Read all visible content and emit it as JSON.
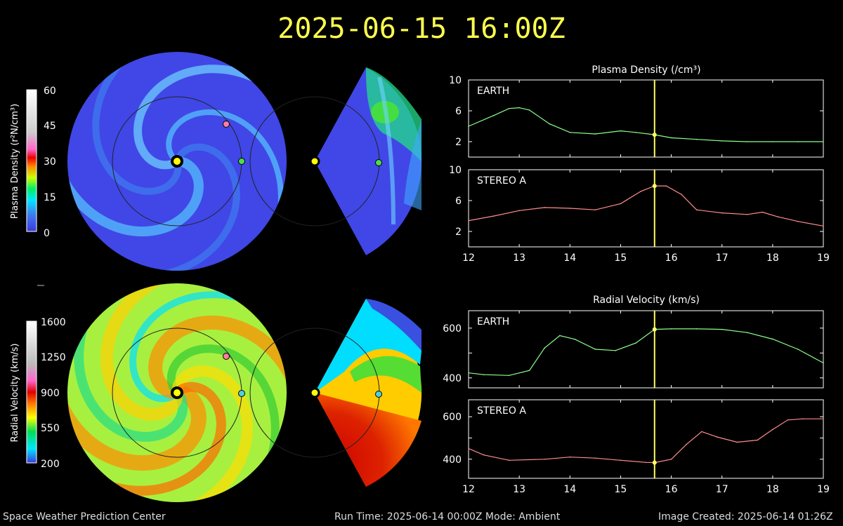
{
  "header": {
    "timestamp": "2025-06-15 16:00Z"
  },
  "colorbars": {
    "density": {
      "label": "Plasma Density (r²N/cm³)",
      "ticks": [
        "60",
        "45",
        "30",
        "15",
        "0"
      ]
    },
    "velocity": {
      "label": "Radial Velocity (km/s)",
      "ticks": [
        "1600",
        "1250",
        "900",
        "550",
        "200"
      ]
    }
  },
  "colors": {
    "earth_line": "#8cff8c",
    "stereo_line": "#ff8c8c",
    "earth_marker": "#4ddc4d",
    "stereo_marker": "#ff7ea0",
    "sun": "#ffff00",
    "time_line": "#ffff66",
    "title": "#ffff4d"
  },
  "footer": {
    "left": "Space Weather Prediction Center",
    "mid": "Run Time: 2025-06-14 00:00Z  Mode: Ambient",
    "right": "Image Created: 2025-06-14 01:26Z"
  },
  "chart_data": [
    {
      "type": "line",
      "title": "Plasma Density (/cm³)",
      "panel": "EARTH",
      "xlim": [
        12,
        19
      ],
      "ylim": [
        0,
        10
      ],
      "yticks": [
        2,
        6,
        10
      ],
      "xticks": [
        12,
        13,
        14,
        15,
        16,
        17,
        18,
        19
      ],
      "current_x": 15.67,
      "x": [
        12,
        12.5,
        12.8,
        13,
        13.2,
        13.6,
        14,
        14.5,
        15,
        15.3,
        15.67,
        16,
        16.5,
        17,
        17.5,
        18,
        18.5,
        19
      ],
      "values": [
        4.0,
        5.4,
        6.3,
        6.4,
        6.1,
        4.3,
        3.2,
        3.0,
        3.4,
        3.2,
        2.9,
        2.5,
        2.3,
        2.1,
        2.0,
        2.0,
        2.0,
        2.0
      ]
    },
    {
      "type": "line",
      "title": "",
      "panel": "STEREO A",
      "xlim": [
        12,
        19
      ],
      "ylim": [
        0,
        10
      ],
      "yticks": [
        2,
        6,
        10
      ],
      "xticks": [
        12,
        13,
        14,
        15,
        16,
        17,
        18,
        19
      ],
      "current_x": 15.67,
      "x": [
        12,
        12.5,
        13,
        13.5,
        14,
        14.5,
        15,
        15.4,
        15.67,
        15.9,
        16.2,
        16.5,
        17,
        17.5,
        17.8,
        18.1,
        18.5,
        19
      ],
      "values": [
        3.4,
        4.0,
        4.7,
        5.1,
        5.0,
        4.8,
        5.6,
        7.2,
        7.9,
        7.9,
        6.8,
        4.8,
        4.4,
        4.2,
        4.5,
        3.9,
        3.3,
        2.7
      ]
    },
    {
      "type": "line",
      "title": "Radial Velocity (km/s)",
      "panel": "EARTH",
      "xlim": [
        12,
        19
      ],
      "ylim": [
        360,
        670
      ],
      "yticks": [
        400,
        500,
        600
      ],
      "ytick_labels_shown": [
        400,
        600
      ],
      "xticks": [
        12,
        13,
        14,
        15,
        16,
        17,
        18,
        19
      ],
      "current_x": 15.67,
      "x": [
        12,
        12.3,
        12.8,
        13.2,
        13.5,
        13.8,
        14.1,
        14.5,
        14.9,
        15.3,
        15.67,
        16,
        16.5,
        17,
        17.5,
        18,
        18.5,
        19
      ],
      "values": [
        420,
        413,
        410,
        430,
        520,
        570,
        555,
        515,
        510,
        540,
        595,
        597,
        597,
        595,
        582,
        556,
        515,
        460
      ]
    },
    {
      "type": "line",
      "title": "",
      "panel": "STEREO A",
      "xlim": [
        12,
        19
      ],
      "ylim": [
        310,
        680
      ],
      "yticks": [
        400,
        500,
        600
      ],
      "ytick_labels_shown": [
        400,
        600
      ],
      "xticks": [
        12,
        13,
        14,
        15,
        16,
        17,
        18,
        19
      ],
      "current_x": 15.67,
      "x": [
        12,
        12.3,
        12.8,
        13.5,
        14,
        14.5,
        15,
        15.5,
        15.67,
        16,
        16.3,
        16.6,
        16.9,
        17.3,
        17.7,
        18,
        18.3,
        18.6,
        19
      ],
      "values": [
        450,
        420,
        395,
        400,
        410,
        405,
        395,
        385,
        384,
        400,
        470,
        530,
        505,
        480,
        490,
        540,
        585,
        590,
        590
      ]
    }
  ]
}
